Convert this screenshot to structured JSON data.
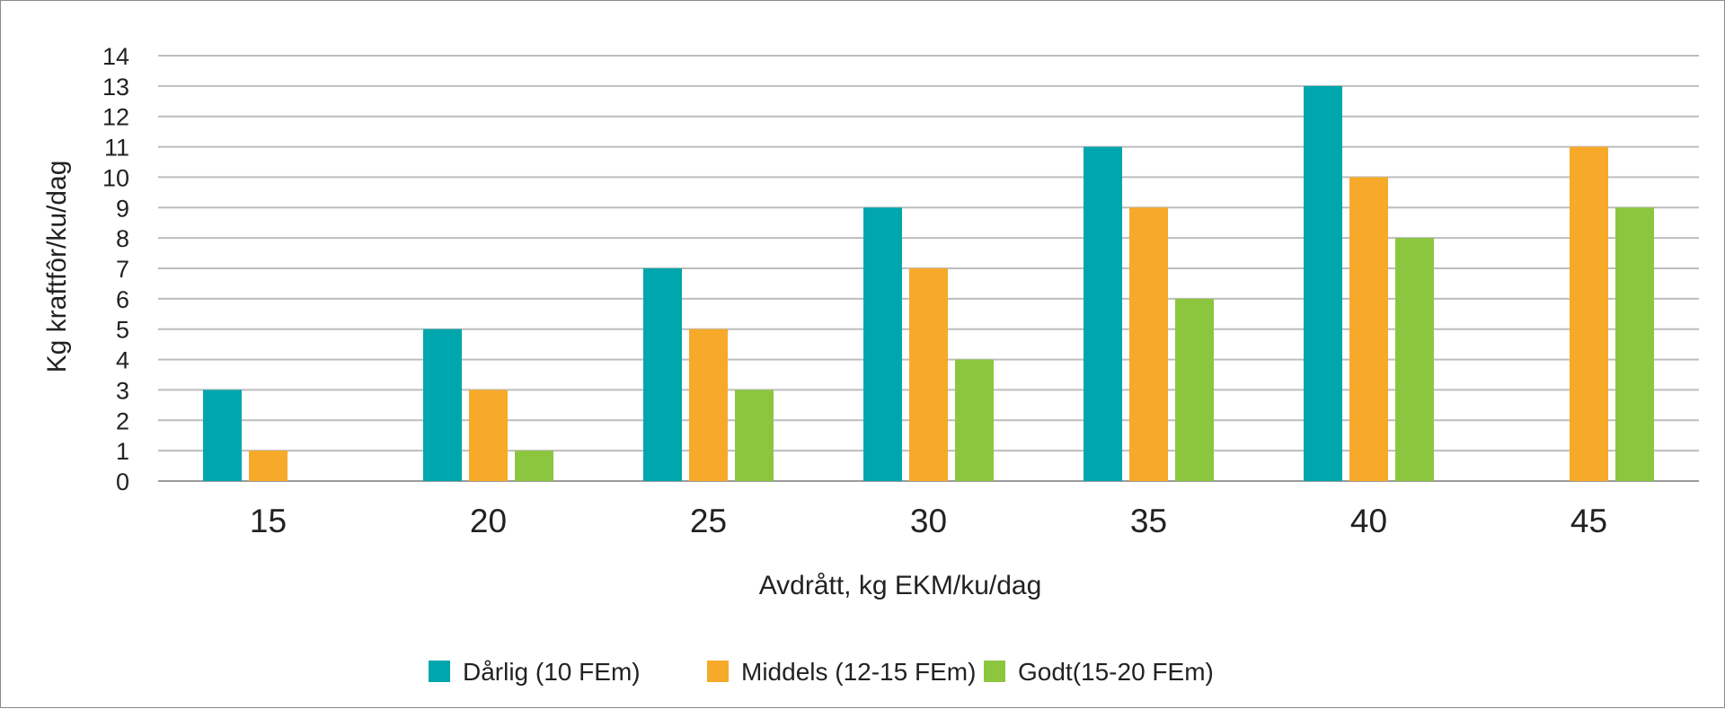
{
  "chart_data": {
    "type": "bar",
    "title": "",
    "xlabel": "Avdrått, kg EKM/ku/dag",
    "ylabel": "Kg kraftfôr/ku/dag",
    "categories": [
      "15",
      "20",
      "25",
      "30",
      "35",
      "40",
      "45"
    ],
    "ylim": [
      0,
      14
    ],
    "yticks": [
      "0",
      "1",
      "2",
      "3",
      "4",
      "5",
      "6",
      "7",
      "8",
      "9",
      "10",
      "11",
      "12",
      "13",
      "14"
    ],
    "grid": true,
    "legend_position": "bottom",
    "series": [
      {
        "name": "Dårlig (10 FEm)",
        "color": "#00a6ad",
        "values": [
          3,
          5,
          7,
          9,
          11,
          13,
          null
        ]
      },
      {
        "name": "Middels (12-15 FEm)",
        "color": "#f7a929",
        "values": [
          1,
          3,
          5,
          7,
          9,
          10,
          11
        ]
      },
      {
        "name": "Godt(15-20 FEm)",
        "color": "#8cc63f",
        "values": [
          null,
          1,
          3,
          4,
          6,
          8,
          9
        ]
      }
    ]
  }
}
